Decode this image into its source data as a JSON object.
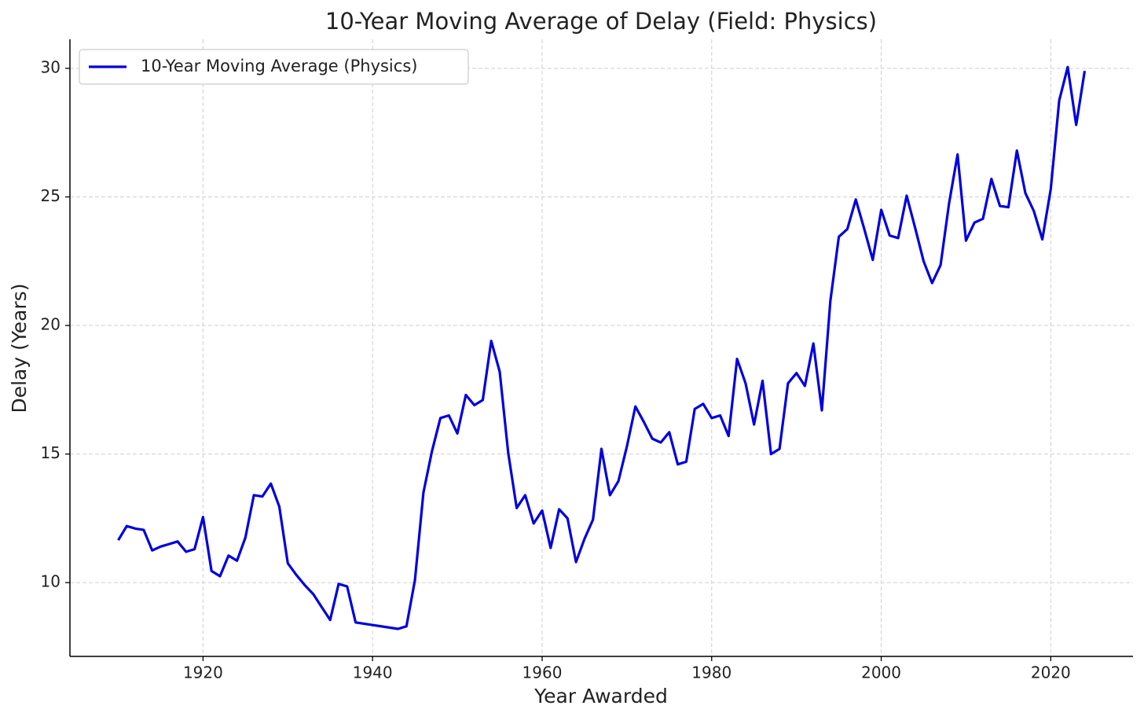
{
  "chart_data": {
    "type": "line",
    "title": "10-Year Moving Average of Delay (Field: Physics)",
    "xlabel": "Year Awarded",
    "ylabel": "Delay (Years)",
    "x": [
      1910,
      1911,
      1912,
      1913,
      1914,
      1915,
      1916,
      1917,
      1918,
      1919,
      1920,
      1921,
      1922,
      1923,
      1924,
      1925,
      1926,
      1927,
      1928,
      1929,
      1930,
      1931,
      1932,
      1933,
      1934,
      1935,
      1936,
      1937,
      1938,
      1943,
      1944,
      1945,
      1946,
      1947,
      1948,
      1949,
      1950,
      1951,
      1952,
      1953,
      1954,
      1955,
      1956,
      1957,
      1958,
      1959,
      1960,
      1961,
      1962,
      1963,
      1964,
      1965,
      1966,
      1967,
      1968,
      1969,
      1970,
      1971,
      1972,
      1973,
      1974,
      1975,
      1976,
      1977,
      1978,
      1979,
      1980,
      1981,
      1982,
      1983,
      1984,
      1985,
      1986,
      1987,
      1988,
      1989,
      1990,
      1991,
      1992,
      1993,
      1994,
      1995,
      1996,
      1997,
      1998,
      1999,
      2000,
      2001,
      2002,
      2003,
      2004,
      2005,
      2006,
      2007,
      2008,
      2009,
      2010,
      2011,
      2012,
      2013,
      2014,
      2015,
      2016,
      2017,
      2018,
      2019,
      2020,
      2021,
      2022,
      2023,
      2024
    ],
    "series": [
      {
        "name": "10-Year Moving Average (Physics)",
        "color": "#0000e0",
        "values": [
          11.65,
          12.2,
          12.1,
          12.05,
          11.25,
          11.4,
          11.5,
          11.6,
          11.2,
          11.3,
          12.55,
          10.45,
          10.25,
          11.05,
          10.85,
          11.75,
          13.4,
          13.35,
          13.85,
          12.95,
          10.75,
          10.3,
          9.9,
          9.55,
          9.05,
          8.55,
          9.95,
          9.85,
          8.45,
          8.2,
          8.3,
          10.1,
          13.5,
          15.1,
          16.4,
          16.5,
          15.8,
          17.3,
          16.9,
          17.1,
          19.4,
          18.2,
          15.05,
          12.9,
          13.4,
          12.3,
          12.8,
          11.35,
          12.85,
          12.5,
          10.8,
          11.7,
          12.45,
          15.2,
          13.4,
          13.95,
          15.3,
          16.85,
          16.25,
          15.6,
          15.45,
          15.85,
          14.6,
          14.7,
          16.75,
          16.95,
          16.4,
          16.5,
          15.7,
          18.7,
          17.75,
          16.15,
          17.85,
          15.0,
          15.2,
          17.75,
          18.15,
          17.65,
          19.3,
          16.7,
          20.95,
          23.45,
          23.75,
          24.9,
          23.75,
          22.55,
          24.5,
          23.5,
          23.4,
          25.05,
          23.8,
          22.5,
          21.65,
          22.35,
          24.75,
          26.65,
          23.3,
          24.0,
          24.15,
          25.7,
          24.65,
          24.6,
          26.8,
          25.15,
          24.45,
          23.35,
          25.3,
          28.75,
          30.05,
          27.8,
          29.9
        ]
      }
    ],
    "xlim": [
      1904.3,
      2029.7
    ],
    "ylim": [
      7.13,
      31.13
    ],
    "xticks": [
      1920,
      1940,
      1960,
      1980,
      2000,
      2020
    ],
    "yticks": [
      10,
      15,
      20,
      25,
      30
    ],
    "grid": true,
    "legend": "upper left"
  }
}
